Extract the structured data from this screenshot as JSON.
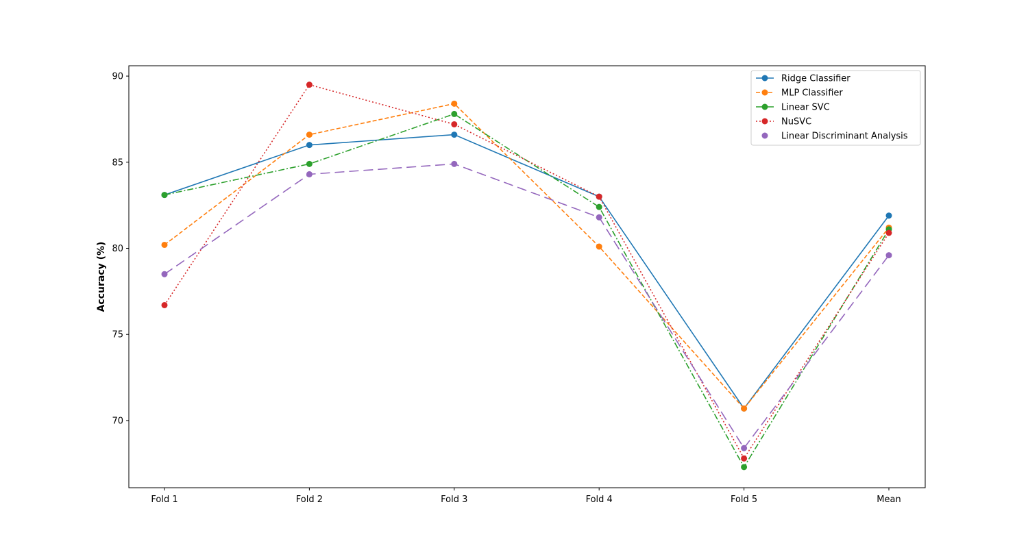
{
  "chart_data": {
    "type": "line",
    "title": "",
    "xlabel": "",
    "ylabel": "Accuracy (%)",
    "categories": [
      "Fold 1",
      "Fold 2",
      "Fold 3",
      "Fold 4",
      "Fold 5",
      "Mean"
    ],
    "ylim": [
      66.1,
      90.6
    ],
    "yticks": [
      70,
      75,
      80,
      85,
      90
    ],
    "grid": false,
    "legend_position": "top-right",
    "series": [
      {
        "name": "Ridge Classifier",
        "color": "#1f77b4",
        "linestyle": "solid",
        "marker": "circle",
        "values": [
          83.1,
          86.0,
          86.6,
          83.0,
          70.7,
          81.9
        ]
      },
      {
        "name": "MLP Classifier",
        "color": "#ff7f0e",
        "linestyle": "dashed",
        "marker": "circle",
        "values": [
          80.2,
          86.6,
          88.4,
          80.1,
          70.7,
          81.2
        ]
      },
      {
        "name": "Linear SVC",
        "color": "#2ca02c",
        "linestyle": "dashdot",
        "marker": "circle",
        "values": [
          83.1,
          84.9,
          87.8,
          82.4,
          67.3,
          81.1
        ]
      },
      {
        "name": "NuSVC",
        "color": "#d62728",
        "linestyle": "dotted",
        "marker": "circle",
        "values": [
          76.7,
          89.5,
          87.2,
          83.0,
          67.8,
          80.9
        ]
      },
      {
        "name": "Linear Discriminant Analysis",
        "color": "#9467bd",
        "linestyle": "longdash",
        "marker": "circle",
        "values": [
          78.5,
          84.3,
          84.9,
          81.8,
          68.4,
          79.6
        ]
      }
    ]
  }
}
